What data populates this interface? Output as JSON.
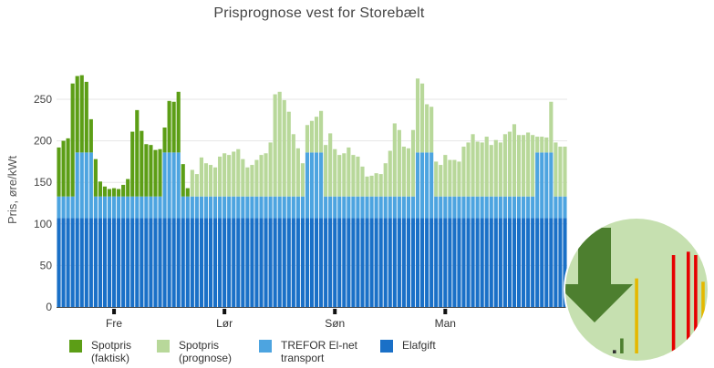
{
  "chart_data": {
    "type": "bar",
    "stacked": true,
    "title": "Prisprognose vest for Storebælt",
    "xlabel": "",
    "ylabel": "Pris, øre/kWt",
    "ylim": [
      0,
      280
    ],
    "yticks": [
      0,
      50,
      100,
      150,
      200,
      250
    ],
    "grid": true,
    "day_labels": [
      "Fre",
      "Lør",
      "Søn",
      "Man"
    ],
    "day_label_hours": [
      12,
      36,
      60,
      84
    ],
    "hours": 111,
    "series": [
      {
        "name": "Elafgift",
        "legend": "Elafgift",
        "color": "#1a70c7",
        "values": [
          107,
          107,
          107,
          107,
          107,
          107,
          107,
          107,
          107,
          107,
          107,
          107,
          107,
          107,
          107,
          107,
          107,
          107,
          107,
          107,
          107,
          107,
          107,
          107,
          107,
          107,
          107,
          107,
          107,
          107,
          107,
          107,
          107,
          107,
          107,
          107,
          107,
          107,
          107,
          107,
          107,
          107,
          107,
          107,
          107,
          107,
          107,
          107,
          107,
          107,
          107,
          107,
          107,
          107,
          107,
          107,
          107,
          107,
          107,
          107,
          107,
          107,
          107,
          107,
          107,
          107,
          107,
          107,
          107,
          107,
          107,
          107,
          107,
          107,
          107,
          107,
          107,
          107,
          107,
          107,
          107,
          107,
          107,
          107,
          107,
          107,
          107,
          107,
          107,
          107,
          107,
          107,
          107,
          107,
          107,
          107,
          107,
          107,
          107,
          107,
          107,
          107,
          107,
          107,
          107,
          107,
          107,
          107,
          107,
          107,
          107
        ]
      },
      {
        "name": "TREFOR El-net transport",
        "legend": "TREFOR El-net\ntransport",
        "color": "#4da4e0",
        "values": [
          26,
          26,
          26,
          26,
          79,
          79,
          79,
          79,
          26,
          26,
          26,
          26,
          26,
          26,
          26,
          26,
          26,
          26,
          26,
          26,
          26,
          26,
          26,
          79,
          79,
          79,
          79,
          26,
          26,
          26,
          26,
          26,
          26,
          26,
          26,
          26,
          26,
          26,
          26,
          26,
          26,
          26,
          26,
          26,
          26,
          26,
          26,
          26,
          26,
          26,
          26,
          26,
          26,
          26,
          79,
          79,
          79,
          79,
          26,
          26,
          26,
          26,
          26,
          26,
          26,
          26,
          26,
          26,
          26,
          26,
          26,
          26,
          26,
          26,
          26,
          26,
          26,
          26,
          79,
          79,
          79,
          79,
          26,
          26,
          26,
          26,
          26,
          26,
          26,
          26,
          26,
          26,
          26,
          26,
          26,
          26,
          26,
          26,
          26,
          26,
          26,
          26,
          26,
          26,
          79,
          79,
          79,
          79,
          26,
          26,
          26
        ]
      },
      {
        "name": "Spotpris (faktisk)",
        "legend": "Spotpris\n(faktisk)",
        "color": "#5c9e16",
        "values": [
          59,
          67,
          70,
          136,
          92,
          93,
          85,
          40,
          45,
          18,
          12,
          9,
          10,
          9,
          14,
          21,
          78,
          104,
          79,
          63,
          62,
          56,
          57,
          30,
          62,
          61,
          73,
          39,
          10
        ]
      },
      {
        "name": "Spotpris (prognose)",
        "legend": "Spotpris\n(prognose)",
        "color": "#b8d89a",
        "values": [
          0,
          0,
          0,
          0,
          0,
          0,
          0,
          0,
          0,
          0,
          0,
          0,
          0,
          0,
          0,
          0,
          0,
          0,
          0,
          0,
          0,
          0,
          0,
          0,
          0,
          0,
          0,
          0,
          0,
          32,
          27,
          47,
          40,
          38,
          35,
          48,
          52,
          50,
          54,
          57,
          45,
          35,
          38,
          44,
          50,
          52,
          65,
          123,
          126,
          116,
          102,
          75,
          58,
          40,
          33,
          38,
          43,
          50,
          62,
          76,
          57,
          50,
          52,
          59,
          50,
          48,
          36,
          24,
          25,
          28,
          27,
          40,
          55,
          88,
          80,
          60,
          58,
          80,
          89,
          83,
          58,
          55,
          42,
          38,
          50,
          44,
          44,
          42,
          60,
          65,
          75,
          66,
          65,
          72,
          62,
          68,
          65,
          75,
          78,
          87,
          74,
          74,
          77,
          74,
          19,
          19,
          18,
          61,
          65,
          60,
          60
        ]
      }
    ]
  },
  "legend_layout": [
    "Spotpris (faktisk)",
    "Spotpris (prognose)",
    "TREFOR El-net transport",
    "Elafgift"
  ],
  "badge": {
    "name": "price-trend-badge",
    "bg_color": "#c6e0b0",
    "arrow_color": "#4d7f2f",
    "bar_values": [
      2,
      9,
      0,
      45,
      0,
      0,
      0,
      0,
      59,
      0,
      61,
      59,
      43
    ],
    "bar_colors": [
      "#333333",
      "#4d7f2f",
      "#e5b800",
      "#e5b800",
      "#e5b800",
      "#e5b800",
      "#e5b800",
      "#e5b800",
      "#e60000",
      "#e60000",
      "#e60000",
      "#e60000",
      "#e5b800"
    ]
  }
}
